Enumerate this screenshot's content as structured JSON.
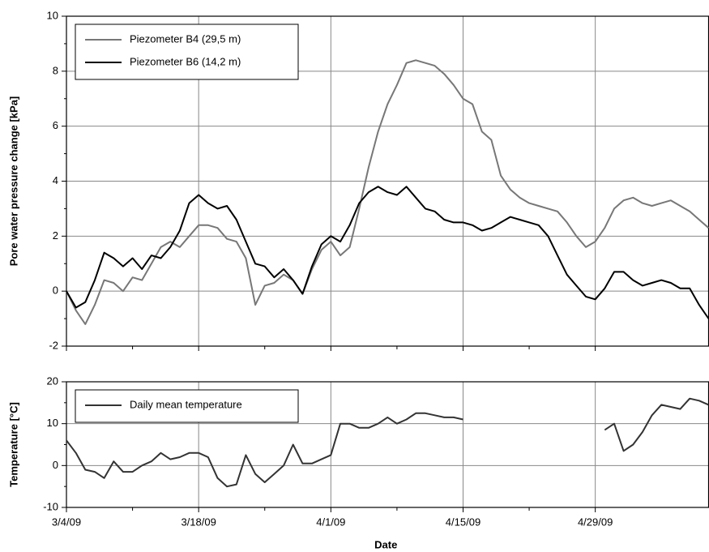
{
  "chart_data": [
    {
      "type": "line",
      "y_label": "Pore water pressure change [kPa]",
      "x": [
        "3/4/09",
        "3/5/09",
        "3/6/09",
        "3/7/09",
        "3/8/09",
        "3/9/09",
        "3/10/09",
        "3/11/09",
        "3/12/09",
        "3/13/09",
        "3/14/09",
        "3/15/09",
        "3/16/09",
        "3/17/09",
        "3/18/09",
        "3/19/09",
        "3/20/09",
        "3/21/09",
        "3/22/09",
        "3/23/09",
        "3/24/09",
        "3/25/09",
        "3/26/09",
        "3/27/09",
        "3/28/09",
        "3/29/09",
        "3/30/09",
        "3/31/09",
        "4/1/09",
        "4/2/09",
        "4/3/09",
        "4/4/09",
        "4/5/09",
        "4/6/09",
        "4/7/09",
        "4/8/09",
        "4/9/09",
        "4/10/09",
        "4/11/09",
        "4/12/09",
        "4/13/09",
        "4/14/09",
        "4/15/09",
        "4/16/09",
        "4/17/09",
        "4/18/09",
        "4/19/09",
        "4/20/09",
        "4/21/09",
        "4/22/09",
        "4/23/09",
        "4/24/09",
        "4/25/09",
        "4/26/09",
        "4/27/09",
        "4/28/09",
        "4/29/09",
        "4/30/09",
        "5/1/09",
        "5/2/09",
        "5/3/09",
        "5/4/09",
        "5/5/09",
        "5/6/09",
        "5/7/09",
        "5/8/09",
        "5/9/09",
        "5/10/09",
        "5/11/09"
      ],
      "series": [
        {
          "name": "Piezometer B4 (29,5 m)",
          "color": "#777777",
          "values": [
            0,
            -0.7,
            -1.2,
            -0.5,
            0.4,
            0.3,
            0,
            0.5,
            0.4,
            1.0,
            1.6,
            1.8,
            1.6,
            2.0,
            2.4,
            2.4,
            2.3,
            1.9,
            1.8,
            1.2,
            -0.5,
            0.2,
            0.3,
            0.6,
            0.4,
            -0.1,
            0.8,
            1.5,
            1.8,
            1.3,
            1.6,
            3.0,
            4.5,
            5.8,
            6.8,
            7.5,
            8.3,
            8.4,
            8.3,
            8.2,
            7.9,
            7.5,
            7.0,
            6.8,
            5.8,
            5.5,
            4.2,
            3.7,
            3.4,
            3.2,
            3.1,
            3.0,
            2.9,
            2.5,
            2.0,
            1.6,
            1.8,
            2.3,
            3.0,
            3.3,
            3.4,
            3.2,
            3.1,
            3.2,
            3.3,
            3.1,
            2.9,
            2.6,
            2.3
          ]
        },
        {
          "name": "Piezometer B6 (14,2 m)",
          "color": "#000000",
          "values": [
            0,
            -0.6,
            -0.4,
            0.4,
            1.4,
            1.2,
            0.9,
            1.2,
            0.8,
            1.3,
            1.2,
            1.6,
            2.2,
            3.2,
            3.5,
            3.2,
            3.0,
            3.1,
            2.6,
            1.8,
            1.0,
            0.9,
            0.5,
            0.8,
            0.4,
            -0.1,
            0.9,
            1.7,
            2.0,
            1.8,
            2.4,
            3.2,
            3.6,
            3.8,
            3.6,
            3.5,
            3.8,
            3.4,
            3.0,
            2.9,
            2.6,
            2.5,
            2.5,
            2.4,
            2.2,
            2.3,
            2.5,
            2.7,
            2.6,
            2.5,
            2.4,
            2.0,
            1.3,
            0.6,
            0.2,
            -0.2,
            -0.3,
            0.1,
            0.7,
            0.7,
            0.4,
            0.2,
            0.3,
            0.4,
            0.3,
            0.1,
            0.1,
            -0.5,
            -1.0
          ]
        }
      ],
      "xlim": [
        "3/4/09",
        "5/11/09"
      ],
      "xticks": [
        "3/4/09",
        "3/18/09",
        "4/1/09",
        "4/15/09",
        "4/29/09"
      ],
      "ylim": [
        -2,
        10
      ],
      "yticks": [
        -2,
        0,
        2,
        4,
        6,
        8,
        10
      ],
      "grid": true,
      "legend": "top-left"
    },
    {
      "type": "line",
      "y_label": "Temperature [°C]",
      "x_label": "Date",
      "x": [
        "3/4/09",
        "3/5/09",
        "3/6/09",
        "3/7/09",
        "3/8/09",
        "3/9/09",
        "3/10/09",
        "3/11/09",
        "3/12/09",
        "3/13/09",
        "3/14/09",
        "3/15/09",
        "3/16/09",
        "3/17/09",
        "3/18/09",
        "3/19/09",
        "3/20/09",
        "3/21/09",
        "3/22/09",
        "3/23/09",
        "3/24/09",
        "3/25/09",
        "3/26/09",
        "3/27/09",
        "3/28/09",
        "3/29/09",
        "3/30/09",
        "3/31/09",
        "4/1/09",
        "4/2/09",
        "4/3/09",
        "4/4/09",
        "4/5/09",
        "4/6/09",
        "4/7/09",
        "4/8/09",
        "4/9/09",
        "4/10/09",
        "4/11/09",
        "4/12/09",
        "4/13/09",
        "4/14/09",
        "4/15/09",
        "4/16/09",
        "4/17/09",
        "4/18/09",
        "4/19/09",
        "4/20/09",
        "4/21/09",
        "4/22/09",
        "4/23/09",
        "4/24/09",
        "4/25/09",
        "4/26/09",
        "4/27/09",
        "4/28/09",
        "4/29/09",
        "4/30/09",
        "5/1/09",
        "5/2/09",
        "5/3/09",
        "5/4/09",
        "5/5/09",
        "5/6/09",
        "5/7/09",
        "5/8/09",
        "5/9/09",
        "5/10/09",
        "5/11/09"
      ],
      "series": [
        {
          "name": "Daily mean temperature",
          "color": "#333333",
          "values": [
            6,
            3,
            -1,
            -1.5,
            -3,
            1,
            -1.5,
            -1.5,
            0,
            1,
            3,
            1.5,
            2,
            3,
            3,
            2,
            -3,
            -5,
            -4.5,
            2.5,
            -2,
            -4,
            -2,
            0,
            5,
            0.5,
            0.5,
            1.5,
            2.5,
            10,
            10,
            9,
            9,
            10,
            11.5,
            10,
            11,
            12.5,
            12.5,
            12,
            11.5,
            11.5,
            11,
            null,
            null,
            null,
            null,
            null,
            null,
            null,
            null,
            null,
            null,
            null,
            null,
            null,
            null,
            8.5,
            10,
            3.5,
            5,
            8,
            12,
            14.5,
            14,
            13.5,
            16,
            15.5,
            14.5
          ]
        }
      ],
      "xlim": [
        "3/4/09",
        "5/11/09"
      ],
      "xticks": [
        "3/4/09",
        "3/18/09",
        "4/1/09",
        "4/15/09",
        "4/29/09"
      ],
      "ylim": [
        -10,
        20
      ],
      "yticks": [
        -10,
        0,
        10,
        20
      ],
      "grid": true,
      "legend": "top-left"
    }
  ]
}
